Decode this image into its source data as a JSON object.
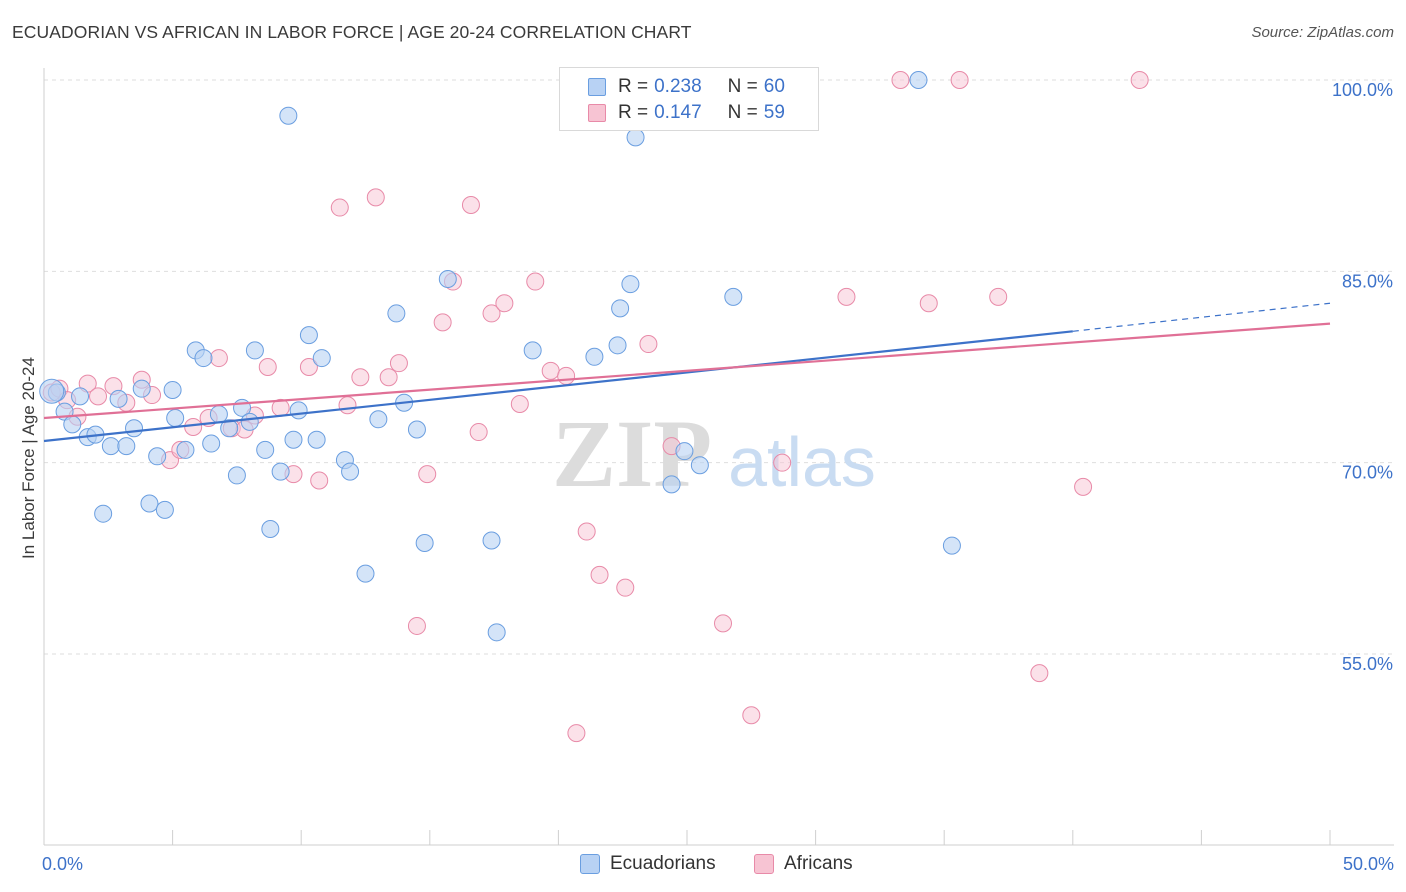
{
  "title": "ECUADORIAN VS AFRICAN IN LABOR FORCE | AGE 20-24 CORRELATION CHART",
  "source": "Source: ZipAtlas.com",
  "watermark": {
    "zip": "ZIP",
    "atlas": "atlas"
  },
  "legend": {
    "r_label": "R =",
    "n_label": "N =",
    "series": [
      {
        "name": "Ecuadorians",
        "r": "0.238",
        "n": "60",
        "fill": "#b8d2f4",
        "stroke": "#6a9ee0"
      },
      {
        "name": "Africans",
        "r": "0.147",
        "n": "59",
        "fill": "#f7c4d3",
        "stroke": "#e88aa8"
      }
    ]
  },
  "chart_data": {
    "type": "scatter",
    "title": "ECUADORIAN VS AFRICAN IN LABOR FORCE | AGE 20-24 CORRELATION CHART",
    "xlabel": "",
    "ylabel": "In Labor Force | Age 20-24",
    "xlim": [
      0,
      50
    ],
    "ylim": [
      40,
      102
    ],
    "x_tick_labels": [
      {
        "x": 0,
        "label": "0.0%"
      },
      {
        "x": 50,
        "label": "50.0%"
      }
    ],
    "y_tick_labels": [
      {
        "y": 100,
        "label": "100.0%"
      },
      {
        "y": 85,
        "label": "85.0%"
      },
      {
        "y": 70,
        "label": "70.0%"
      },
      {
        "y": 55,
        "label": "55.0%"
      }
    ],
    "grid": true,
    "series": [
      {
        "name": "Ecuadorians",
        "color": "#3d72c9",
        "trend": {
          "x0": 0,
          "y0": 71.7,
          "x1": 40,
          "y1": 80.3,
          "dashed_to_x": 50,
          "dashed_to_y": 82.5
        },
        "points": [
          [
            0.5,
            75.5
          ],
          [
            0.8,
            74.0
          ],
          [
            1.1,
            73.0
          ],
          [
            1.4,
            75.2
          ],
          [
            1.7,
            72.0
          ],
          [
            2.0,
            72.2
          ],
          [
            2.3,
            66.0
          ],
          [
            2.6,
            71.3
          ],
          [
            2.9,
            75.0
          ],
          [
            3.2,
            71.3
          ],
          [
            3.5,
            72.7
          ],
          [
            3.8,
            75.8
          ],
          [
            4.1,
            66.8
          ],
          [
            4.4,
            70.5
          ],
          [
            4.7,
            66.3
          ],
          [
            5.0,
            75.7
          ],
          [
            5.1,
            73.5
          ],
          [
            5.5,
            71.0
          ],
          [
            5.9,
            78.8
          ],
          [
            6.2,
            78.2
          ],
          [
            6.5,
            71.5
          ],
          [
            6.8,
            73.8
          ],
          [
            7.2,
            72.7
          ],
          [
            7.5,
            69.0
          ],
          [
            7.7,
            74.3
          ],
          [
            8.0,
            73.2
          ],
          [
            8.2,
            78.8
          ],
          [
            8.6,
            71.0
          ],
          [
            8.8,
            64.8
          ],
          [
            9.2,
            69.3
          ],
          [
            9.5,
            97.2
          ],
          [
            9.7,
            71.8
          ],
          [
            9.9,
            74.1
          ],
          [
            10.3,
            80.0
          ],
          [
            10.6,
            71.8
          ],
          [
            10.8,
            78.2
          ],
          [
            11.7,
            70.2
          ],
          [
            11.9,
            69.3
          ],
          [
            12.5,
            61.3
          ],
          [
            13.0,
            73.4
          ],
          [
            13.7,
            81.7
          ],
          [
            14.0,
            74.7
          ],
          [
            14.5,
            72.6
          ],
          [
            14.8,
            63.7
          ],
          [
            15.7,
            84.4
          ],
          [
            17.4,
            63.9
          ],
          [
            17.6,
            56.7
          ],
          [
            19.0,
            78.8
          ],
          [
            21.4,
            78.3
          ],
          [
            22.3,
            79.2
          ],
          [
            22.4,
            82.1
          ],
          [
            22.8,
            84.0
          ],
          [
            23.0,
            95.5
          ],
          [
            24.4,
            68.3
          ],
          [
            24.9,
            70.9
          ],
          [
            25.5,
            69.8
          ],
          [
            26.8,
            83.0
          ],
          [
            34.0,
            100.0
          ],
          [
            35.3,
            63.5
          ],
          [
            0.3,
            75.6
          ]
        ]
      },
      {
        "name": "Africans",
        "color": "#e07096",
        "trend": {
          "x0": 0,
          "y0": 73.5,
          "x1": 50,
          "y1": 80.9
        },
        "points": [
          [
            0.3,
            75.5
          ],
          [
            0.6,
            75.8
          ],
          [
            0.9,
            74.9
          ],
          [
            1.3,
            73.6
          ],
          [
            1.7,
            76.2
          ],
          [
            2.1,
            75.2
          ],
          [
            2.7,
            76.0
          ],
          [
            3.2,
            74.7
          ],
          [
            3.8,
            76.5
          ],
          [
            4.2,
            75.3
          ],
          [
            4.9,
            70.2
          ],
          [
            5.3,
            71.0
          ],
          [
            5.8,
            72.8
          ],
          [
            6.4,
            73.5
          ],
          [
            6.8,
            78.2
          ],
          [
            7.3,
            72.7
          ],
          [
            7.8,
            72.6
          ],
          [
            8.2,
            73.7
          ],
          [
            8.7,
            77.5
          ],
          [
            9.2,
            74.3
          ],
          [
            9.7,
            69.1
          ],
          [
            10.3,
            77.5
          ],
          [
            10.7,
            68.6
          ],
          [
            11.5,
            90.0
          ],
          [
            11.8,
            74.5
          ],
          [
            12.3,
            76.7
          ],
          [
            12.9,
            90.8
          ],
          [
            13.4,
            76.7
          ],
          [
            13.8,
            77.8
          ],
          [
            14.5,
            57.2
          ],
          [
            14.9,
            69.1
          ],
          [
            15.5,
            81.0
          ],
          [
            15.9,
            84.2
          ],
          [
            16.6,
            90.2
          ],
          [
            16.9,
            72.4
          ],
          [
            17.4,
            81.7
          ],
          [
            17.9,
            82.5
          ],
          [
            18.5,
            74.6
          ],
          [
            19.1,
            84.2
          ],
          [
            19.7,
            77.2
          ],
          [
            20.3,
            76.8
          ],
          [
            20.7,
            48.8
          ],
          [
            21.1,
            64.6
          ],
          [
            21.6,
            61.2
          ],
          [
            22.6,
            60.2
          ],
          [
            23.5,
            79.3
          ],
          [
            24.4,
            71.3
          ],
          [
            25.5,
            100.0
          ],
          [
            26.4,
            57.4
          ],
          [
            27.5,
            50.2
          ],
          [
            28.7,
            70.0
          ],
          [
            31.2,
            83.0
          ],
          [
            33.3,
            100.0
          ],
          [
            34.4,
            82.5
          ],
          [
            35.6,
            100.0
          ],
          [
            37.1,
            83.0
          ],
          [
            38.7,
            53.5
          ],
          [
            40.4,
            68.1
          ],
          [
            42.6,
            100.0
          ]
        ]
      }
    ]
  }
}
